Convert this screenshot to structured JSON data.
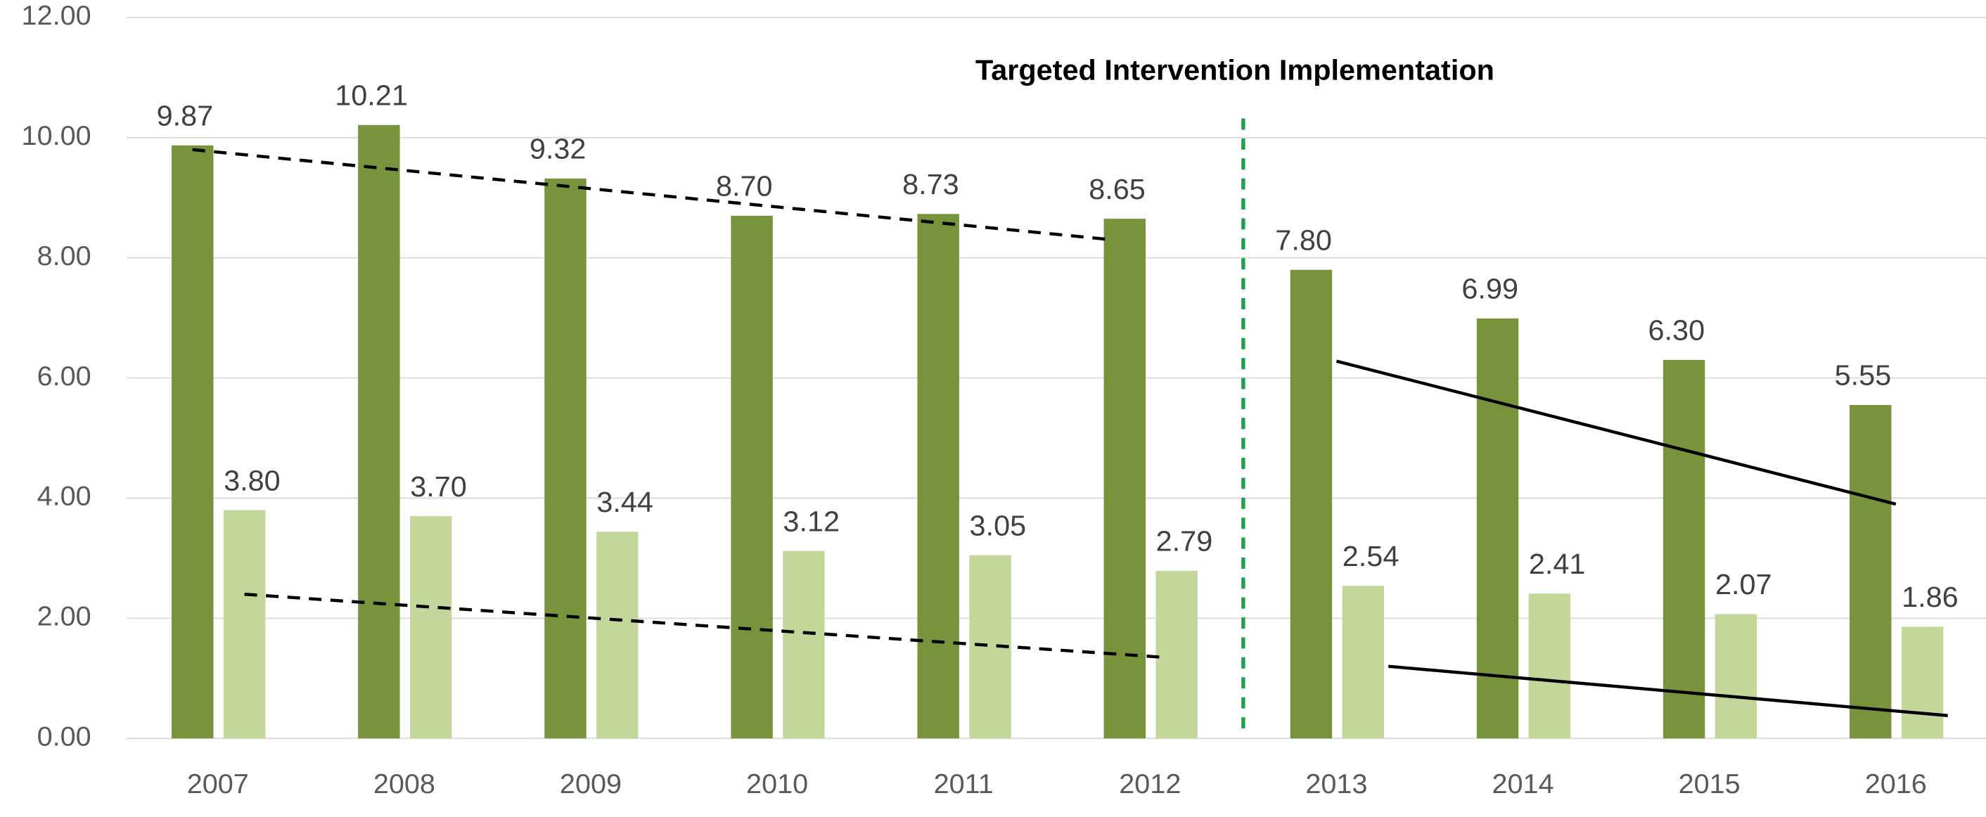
{
  "chart_data": {
    "type": "bar",
    "annotation": "Targeted Intervention Implementation",
    "categories": [
      "2007",
      "2008",
      "2009",
      "2010",
      "2011",
      "2012",
      "2013",
      "2014",
      "2015",
      "2016"
    ],
    "series": [
      {
        "color": "#77933c",
        "values": [
          9.87,
          10.21,
          9.32,
          8.7,
          8.73,
          8.65,
          7.8,
          6.99,
          6.3,
          5.55
        ],
        "value_labels": [
          "9.87",
          "10.21",
          "9.32",
          "8.70",
          "8.73",
          "8.65",
          "7.80",
          "6.99",
          "6.30",
          "5.55"
        ]
      },
      {
        "color": "#c4d79b",
        "values": [
          3.8,
          3.7,
          3.44,
          3.12,
          3.05,
          2.79,
          2.54,
          2.41,
          2.07,
          1.86
        ],
        "value_labels": [
          "3.80",
          "3.70",
          "3.44",
          "3.12",
          "3.05",
          "2.79",
          "2.54",
          "2.41",
          "2.07",
          "1.86"
        ]
      }
    ],
    "ylim": [
      0,
      12
    ],
    "yticks": [
      {
        "value": 0,
        "label": "0.00"
      },
      {
        "value": 2,
        "label": "2.00"
      },
      {
        "value": 4,
        "label": "4.00"
      },
      {
        "value": 6,
        "label": "6.00"
      },
      {
        "value": 8,
        "label": "8.00"
      },
      {
        "value": 10,
        "label": "10.00"
      },
      {
        "value": 12,
        "label": "12.00"
      }
    ],
    "grid": true,
    "divider_color": "#1fa050",
    "trend_lines": [
      {
        "series": 0,
        "style": "dashed",
        "x": [
          "2007",
          "2012"
        ],
        "values": [
          9.8,
          8.3
        ]
      },
      {
        "series": 1,
        "style": "dashed",
        "x": [
          "2007",
          "2012"
        ],
        "values": [
          2.4,
          1.35
        ]
      },
      {
        "series": 0,
        "style": "solid",
        "x": [
          "2013",
          "2016"
        ],
        "values": [
          6.28,
          3.9
        ]
      },
      {
        "series": 1,
        "style": "solid",
        "x": [
          "2013",
          "2016"
        ],
        "values": [
          1.2,
          0.38
        ]
      }
    ]
  }
}
